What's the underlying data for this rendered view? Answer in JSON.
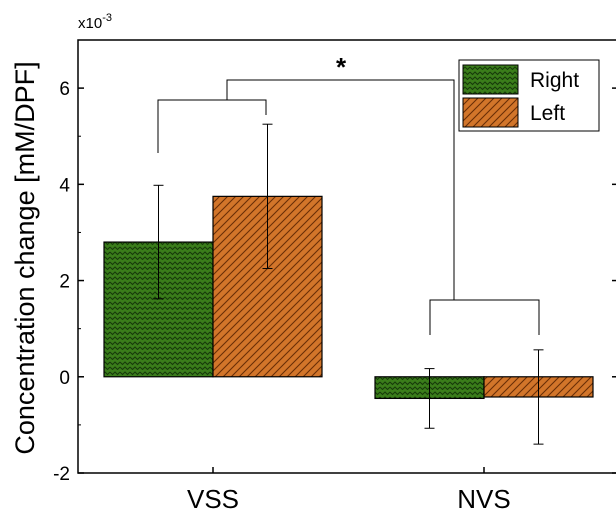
{
  "chart_data": {
    "type": "bar",
    "categories": [
      "VSS",
      "NVS"
    ],
    "series": [
      {
        "name": "Right",
        "values": [
          2.8,
          -0.45
        ],
        "errors": [
          1.18,
          0.62
        ],
        "color": "#3a7d1a",
        "pattern": "zigzag"
      },
      {
        "name": "Left",
        "values": [
          3.75,
          -0.42
        ],
        "errors": [
          1.5,
          0.98
        ],
        "color": "#d2752a",
        "pattern": "diagonal"
      }
    ],
    "ylabel": "Concentration change [mM/DPF]",
    "xlabel": "",
    "multiplier": "x10",
    "multiplier_exp": "-3",
    "ylim": [
      -2,
      7
    ],
    "yticks": [
      -2,
      0,
      2,
      4,
      6
    ],
    "significance": "*",
    "legend_position": "top-right",
    "grid": false
  }
}
